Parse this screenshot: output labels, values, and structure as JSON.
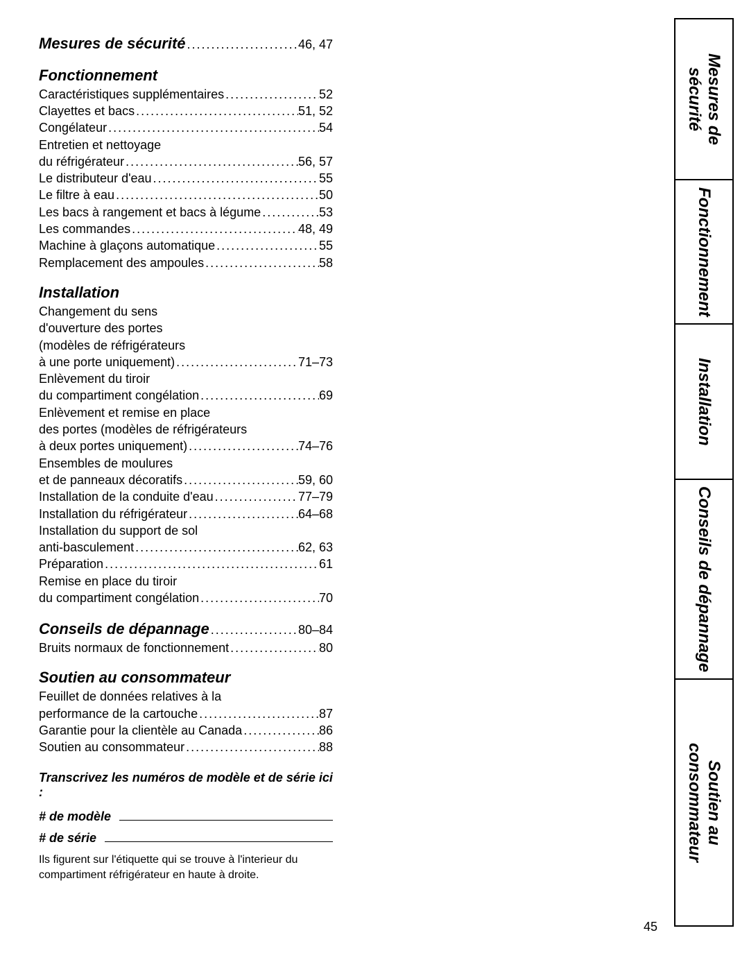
{
  "toc": {
    "securite": {
      "heading": "Mesures de sécurité",
      "pages": "46, 47"
    },
    "fonctionnement": {
      "heading": "Fonctionnement",
      "items": [
        {
          "label": "Caractéristiques supplémentaires",
          "pages": "52"
        },
        {
          "label": "Clayettes et bacs",
          "pages": "51, 52"
        },
        {
          "label": "Congélateur",
          "pages": "54"
        },
        {
          "multiline_prefix": "Entretien et nettoyage",
          "label": "du réfrigérateur",
          "pages": "56, 57"
        },
        {
          "label": "Le distributeur d'eau",
          "pages": "55"
        },
        {
          "label": "Le filtre à eau",
          "pages": "50"
        },
        {
          "label": "Les bacs à rangement et bacs à légume",
          "pages": "53"
        },
        {
          "label": "Les commandes",
          "pages": "48, 49"
        },
        {
          "label": "Machine à glaçons automatique",
          "pages": "55"
        },
        {
          "label": "Remplacement des ampoules",
          "pages": "58"
        }
      ]
    },
    "installation": {
      "heading": "Installation",
      "items": [
        {
          "multiline_prefix": "Changement du sens\nd'ouverture des portes\n(modèles de réfrigérateurs",
          "label": "à une porte uniquement)",
          "pages": "71–73"
        },
        {
          "multiline_prefix": "Enlèvement du tiroir",
          "label": "du compartiment congélation",
          "pages": "69"
        },
        {
          "multiline_prefix": "Enlèvement et remise en place\ndes portes (modèles de réfrigérateurs",
          "label": "à deux portes uniquement)",
          "pages": "74–76"
        },
        {
          "multiline_prefix": "Ensembles de moulures",
          "label": "et de panneaux décoratifs",
          "pages": "59, 60"
        },
        {
          "label": "Installation de la conduite d'eau",
          "pages": "77–79"
        },
        {
          "label": "Installation du réfrigérateur",
          "pages": "64–68"
        },
        {
          "multiline_prefix": "Installation du support de sol",
          "label": "anti-basculement",
          "pages": "62, 63"
        },
        {
          "label": "Préparation",
          "pages": "61"
        },
        {
          "multiline_prefix": "Remise en place du tiroir",
          "label": "du compartiment congélation",
          "pages": "70"
        }
      ]
    },
    "depannage": {
      "heading": "Conseils de dépannage",
      "heading_pages": "80–84",
      "items": [
        {
          "label": "Bruits normaux de fonctionnement",
          "pages": "80"
        }
      ]
    },
    "soutien": {
      "heading": "Soutien au consommateur",
      "items": [
        {
          "multiline_prefix": "Feuillet de données relatives à la",
          "label": "performance de la cartouche",
          "pages": "87"
        },
        {
          "label": "Garantie pour la clientèle au Canada",
          "pages": "86"
        },
        {
          "label": "Soutien au consommateur",
          "pages": "88"
        }
      ]
    }
  },
  "record": {
    "instruction": "Transcrivez les numéros de modèle et de série ici :",
    "model_label": "# de modèle",
    "serial_label": "# de série",
    "note": "Ils figurent sur l'étiquette qui se trouve à l'interieur du compartiment réfrigérateur en haute à droite."
  },
  "tabs": {
    "t1": "Mesures de sécurité",
    "t2": "Fonctionnement",
    "t3": "Installation",
    "t4": "Conseils de dépannage",
    "t5": "Soutien au\nconsommateur"
  },
  "page_number": "45"
}
